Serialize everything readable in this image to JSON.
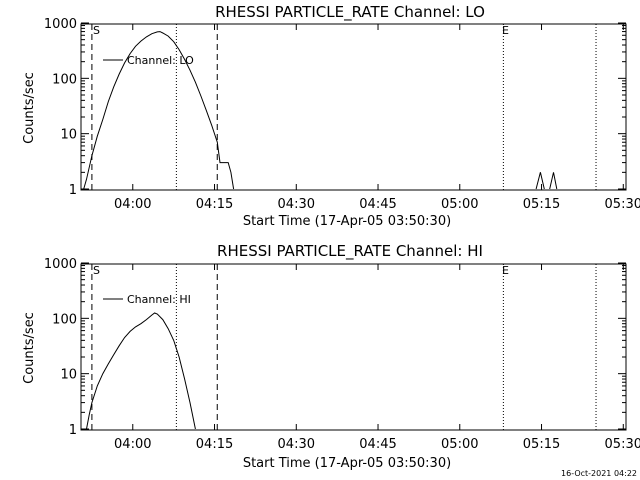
{
  "panels": [
    {
      "title": "RHESSI PARTICLE_RATE Channel: LO",
      "ylabel": "Counts/sec",
      "xlabel": "Start Time (17-Apr-05 03:50:30)",
      "legend": "Channel: LO",
      "marker_s": "S",
      "marker_e": "E"
    },
    {
      "title": "RHESSI PARTICLE_RATE Channel: HI",
      "ylabel": "Counts/sec",
      "xlabel": "Start Time (17-Apr-05 03:50:30)",
      "legend": "Channel: HI",
      "marker_s": "S",
      "marker_e": "E"
    }
  ],
  "timestamp": "16-Oct-2021 04:22",
  "chart_data": [
    {
      "type": "line",
      "title": "RHESSI PARTICLE_RATE Channel: LO",
      "xlabel": "Start Time (17-Apr-05 03:50:30)",
      "ylabel": "Counts/sec",
      "x_unit": "minutes after 03:50:30",
      "xlim": [
        0,
        100
      ],
      "yscale": "log",
      "ylim": [
        1,
        1000
      ],
      "x_ticks": [
        "04:00",
        "04:15",
        "04:30",
        "04:45",
        "05:00",
        "05:15",
        "05:30"
      ],
      "x_tick_values": [
        9.5,
        24.5,
        39.5,
        54.5,
        69.5,
        84.5,
        99.5
      ],
      "y_ticks": [
        "1",
        "10",
        "100",
        "1000"
      ],
      "y_tick_values": [
        1,
        10,
        100,
        1000
      ],
      "dashed_lines": [
        2,
        25
      ],
      "dotted_lines": [
        17.5,
        77.5,
        94.5
      ],
      "series": [
        {
          "name": "Channel: LO",
          "segments": [
            [
              [
                0.5,
                1
              ],
              [
                1,
                1.5
              ],
              [
                2,
                4
              ],
              [
                3,
                9
              ],
              [
                4,
                18
              ],
              [
                5,
                38
              ],
              [
                6,
                70
              ],
              [
                7,
                120
              ],
              [
                8,
                190
              ],
              [
                9,
                280
              ],
              [
                10,
                380
              ],
              [
                11,
                470
              ],
              [
                12,
                560
              ],
              [
                13,
                640
              ],
              [
                14,
                690
              ],
              [
                14.5,
                700
              ],
              [
                15,
                660
              ],
              [
                16,
                580
              ],
              [
                17,
                460
              ],
              [
                18,
                330
              ],
              [
                19,
                220
              ],
              [
                20,
                140
              ],
              [
                21,
                85
              ],
              [
                22,
                48
              ],
              [
                23,
                26
              ],
              [
                24,
                14
              ],
              [
                25,
                7
              ],
              [
                25.5,
                3
              ],
              [
                26,
                3
              ],
              [
                27,
                3
              ],
              [
                27.5,
                2
              ],
              [
                28,
                1
              ]
            ],
            [
              [
                83.5,
                1
              ],
              [
                84.3,
                2
              ],
              [
                85,
                1
              ]
            ],
            [
              [
                86,
                1
              ],
              [
                86.7,
                2
              ],
              [
                87.3,
                1
              ]
            ]
          ]
        }
      ]
    },
    {
      "type": "line",
      "title": "RHESSI PARTICLE_RATE Channel: HI",
      "xlabel": "Start Time (17-Apr-05 03:50:30)",
      "ylabel": "Counts/sec",
      "x_unit": "minutes after 03:50:30",
      "xlim": [
        0,
        100
      ],
      "yscale": "log",
      "ylim": [
        1,
        1000
      ],
      "x_ticks": [
        "04:00",
        "04:15",
        "04:30",
        "04:45",
        "05:00",
        "05:15",
        "05:30"
      ],
      "x_tick_values": [
        9.5,
        24.5,
        39.5,
        54.5,
        69.5,
        84.5,
        99.5
      ],
      "y_ticks": [
        "1",
        "10",
        "100",
        "1000"
      ],
      "y_tick_values": [
        1,
        10,
        100,
        1000
      ],
      "dashed_lines": [
        2,
        25
      ],
      "dotted_lines": [
        17.5,
        77.5,
        94.5
      ],
      "series": [
        {
          "name": "Channel: HI",
          "segments": [
            [
              [
                1,
                1
              ],
              [
                1.5,
                1.8
              ],
              [
                2,
                3
              ],
              [
                3,
                6
              ],
              [
                4,
                10
              ],
              [
                5,
                15
              ],
              [
                6,
                22
              ],
              [
                7,
                32
              ],
              [
                8,
                45
              ],
              [
                9,
                58
              ],
              [
                10,
                70
              ],
              [
                11,
                80
              ],
              [
                12,
                95
              ],
              [
                13,
                115
              ],
              [
                13.5,
                125
              ],
              [
                14,
                120
              ],
              [
                15,
                95
              ],
              [
                16,
                65
              ],
              [
                17,
                40
              ],
              [
                18,
                20
              ],
              [
                19,
                8
              ],
              [
                20,
                3
              ],
              [
                21,
                1
              ]
            ]
          ]
        }
      ]
    }
  ]
}
